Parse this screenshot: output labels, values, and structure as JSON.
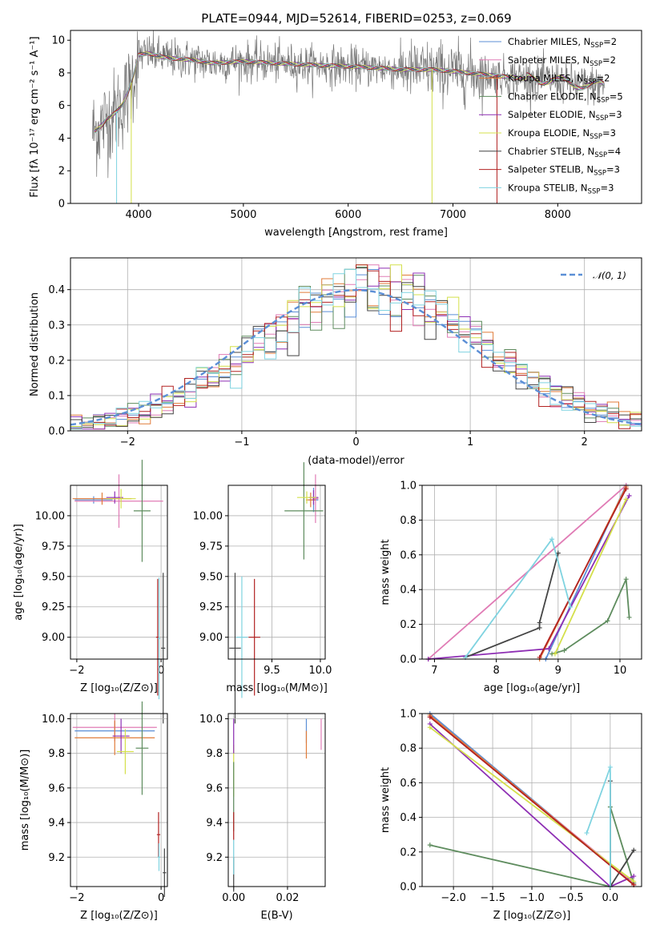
{
  "title": "PLATE=0944, MJD=52614, FIBERID=0253, z=0.069",
  "colors": {
    "chabrier_miles": "#5b8fd6",
    "salpeter_miles": "#e07bb5",
    "kroupa_miles": "#e07b39",
    "chabrier_elodie": "#5e8c5e",
    "salpeter_elodie": "#8e2fb4",
    "kroupa_elodie": "#d4e04b",
    "chabrier_stelib": "#444444",
    "salpeter_stelib": "#b22222",
    "kroupa_stelib": "#7fd3e0"
  },
  "chart_data": [
    {
      "id": "spectrum",
      "type": "line",
      "xlabel": "wavelength [Angstrom, rest frame]",
      "ylabel": "Flux [fλ 10⁻¹⁷ erg cm⁻² s⁻¹ A⁻¹]",
      "xlim": [
        3350,
        8800
      ],
      "ylim": [
        0,
        10.6
      ],
      "xticks": [
        "4000",
        "5000",
        "6000",
        "7000",
        "8000"
      ],
      "yticks": [
        "0",
        "2",
        "4",
        "6",
        "8",
        "10"
      ],
      "legend_position": "top-right",
      "legend": [
        {
          "base": "Chabrier MILES, N",
          "sub": "SSP",
          "tail": "=2",
          "color": "#5b8fd6"
        },
        {
          "base": "Salpeter MILES, N",
          "sub": "SSP",
          "tail": "=2",
          "color": "#e07bb5"
        },
        {
          "base": "Kroupa MILES, N",
          "sub": "SSP",
          "tail": "=2",
          "color": "#e07b39"
        },
        {
          "base": "Chabrier ELODIE, N",
          "sub": "SSP",
          "tail": "=5",
          "color": "#5e8c5e"
        },
        {
          "base": "Salpeter ELODIE, N",
          "sub": "SSP",
          "tail": "=3",
          "color": "#8e2fb4"
        },
        {
          "base": "Kroupa ELODIE, N",
          "sub": "SSP",
          "tail": "=3",
          "color": "#d4e04b"
        },
        {
          "base": "Chabrier STELIB, N",
          "sub": "SSP",
          "tail": "=4",
          "color": "#444444"
        },
        {
          "base": "Salpeter STELIB, N",
          "sub": "SSP",
          "tail": "=3",
          "color": "#b22222"
        },
        {
          "base": "Kroupa STELIB, N",
          "sub": "SSP",
          "tail": "=3",
          "color": "#7fd3e0"
        }
      ],
      "continuum": {
        "x": [
          3580,
          3650,
          3700,
          3750,
          3800,
          3850,
          3900,
          3950,
          4000,
          4100,
          4200,
          4300,
          4500,
          4700,
          5000,
          5300,
          5600,
          6000,
          6300,
          6500,
          6800,
          7000,
          7300,
          7600,
          7900,
          8200,
          8500
        ],
        "y": [
          4.4,
          4.8,
          5.2,
          5.4,
          5.7,
          6.1,
          6.8,
          7.8,
          9.1,
          9.2,
          9.0,
          8.9,
          8.8,
          8.6,
          8.7,
          8.6,
          8.5,
          8.4,
          8.3,
          8.2,
          8.2,
          8.1,
          7.9,
          7.7,
          7.6,
          7.3,
          7.2
        ]
      },
      "observed_range": [
        3560,
        8450
      ]
    },
    {
      "id": "residuals",
      "type": "histogram",
      "xlabel": "(data-model)/error",
      "ylabel": "Normed distribution",
      "xlim": [
        -2.5,
        2.5
      ],
      "ylim": [
        0,
        0.49
      ],
      "xticks": [
        "−2",
        "−1",
        "0",
        "1",
        "2"
      ],
      "yticks": [
        "0.0",
        "0.1",
        "0.2",
        "0.3",
        "0.4"
      ],
      "legend_label": "𝒩(0, 1)",
      "legend_position": "top-right",
      "reference_curve": "normal(0,1)",
      "bin_width": 0.1
    },
    {
      "id": "age-vs-Z",
      "type": "scatter",
      "xlabel": "Z [log₁₀(Z/Z⊙)]",
      "ylabel": "age  [log₁₀(age/yr)]",
      "xlim": [
        -2.15,
        0.15
      ],
      "ylim": [
        8.82,
        10.25
      ],
      "xticks": [
        {
          "v": -2,
          "t": "−2"
        },
        {
          "v": 0,
          "t": "0"
        }
      ],
      "yticks": [
        {
          "v": 9.0,
          "t": "9.00"
        },
        {
          "v": 9.25,
          "t": "9.25"
        },
        {
          "v": 9.5,
          "t": "9.50"
        },
        {
          "v": 9.75,
          "t": "9.75"
        },
        {
          "v": 10.0,
          "t": "10.00"
        }
      ],
      "points": [
        {
          "x": -1.6,
          "y": 10.13,
          "xerr": 0.45,
          "yerr": 0.03,
          "color": "#5b8fd6"
        },
        {
          "x": -1.0,
          "y": 10.12,
          "xerr": 1.05,
          "yerr": 0.22,
          "color": "#e07bb5"
        },
        {
          "x": -1.4,
          "y": 10.14,
          "xerr": 0.7,
          "yerr": 0.05,
          "color": "#e07b39"
        },
        {
          "x": -0.45,
          "y": 10.04,
          "xerr": 0.2,
          "yerr": 0.42,
          "color": "#5e8c5e"
        },
        {
          "x": -1.1,
          "y": 10.15,
          "xerr": 0.2,
          "yerr": 0.05,
          "color": "#8e2fb4"
        },
        {
          "x": -0.95,
          "y": 10.14,
          "xerr": 0.35,
          "yerr": 0.08,
          "color": "#d4e04b"
        },
        {
          "x": 0.05,
          "y": 8.91,
          "xerr": 0.05,
          "yerr": 0.62,
          "color": "#444444"
        },
        {
          "x": -0.08,
          "y": 9.0,
          "xerr": 0.04,
          "yerr": 0.48,
          "color": "#b22222"
        },
        {
          "x": -0.05,
          "y": 8.99,
          "xerr": 0.03,
          "yerr": 0.5,
          "color": "#7fd3e0"
        }
      ]
    },
    {
      "id": "age-vs-mass",
      "type": "scatter",
      "xlabel": "mass [log₁₀(M/M⊙)]",
      "ylabel": "",
      "xlim": [
        9.05,
        10.05
      ],
      "ylim": [
        8.82,
        10.25
      ],
      "xticks": [
        {
          "v": 9.5,
          "t": "9.5"
        },
        {
          "v": 10.0,
          "t": "10.0"
        }
      ],
      "yticks": [
        {
          "v": 9.0,
          "t": "9.00"
        },
        {
          "v": 9.25,
          "t": "9.25"
        },
        {
          "v": 9.5,
          "t": "9.50"
        },
        {
          "v": 9.75,
          "t": "9.75"
        },
        {
          "v": 10.0,
          "t": "10.00"
        }
      ],
      "points": [
        {
          "x": 9.93,
          "y": 10.13,
          "xerr": 0.05,
          "yerr": 0.1,
          "color": "#5b8fd6"
        },
        {
          "x": 9.95,
          "y": 10.14,
          "xerr": 0.03,
          "yerr": 0.2,
          "color": "#e07bb5"
        },
        {
          "x": 9.9,
          "y": 10.13,
          "xerr": 0.05,
          "yerr": 0.06,
          "color": "#e07b39"
        },
        {
          "x": 9.83,
          "y": 10.04,
          "xerr": 0.2,
          "yerr": 0.4,
          "color": "#5e8c5e"
        },
        {
          "x": 9.93,
          "y": 10.15,
          "xerr": 0.05,
          "yerr": 0.06,
          "color": "#8e2fb4"
        },
        {
          "x": 9.86,
          "y": 10.15,
          "xerr": 0.1,
          "yerr": 0.05,
          "color": "#d4e04b"
        },
        {
          "x": 9.12,
          "y": 8.91,
          "xerr": 0.06,
          "yerr": 0.62,
          "color": "#444444"
        },
        {
          "x": 9.32,
          "y": 9.0,
          "xerr": 0.06,
          "yerr": 0.48,
          "color": "#b22222"
        },
        {
          "x": 9.19,
          "y": 9.0,
          "xerr": 0.06,
          "yerr": 0.5,
          "color": "#7fd3e0"
        }
      ]
    },
    {
      "id": "mass-weight-vs-age",
      "type": "line",
      "xlabel": "age  [log₁₀(age/yr)]",
      "ylabel": "mass weight",
      "xlim": [
        6.8,
        10.35
      ],
      "ylim": [
        0,
        1.0
      ],
      "xticks": [
        {
          "v": 7,
          "t": "7"
        },
        {
          "v": 8,
          "t": "8"
        },
        {
          "v": 9,
          "t": "9"
        },
        {
          "v": 10,
          "t": "10"
        }
      ],
      "yticks": [
        {
          "v": 0,
          "t": "0.0"
        },
        {
          "v": 0.2,
          "t": "0.2"
        },
        {
          "v": 0.4,
          "t": "0.4"
        },
        {
          "v": 0.6,
          "t": "0.6"
        },
        {
          "v": 0.8,
          "t": "0.8"
        },
        {
          "v": 1.0,
          "t": "1.0"
        }
      ],
      "series": [
        {
          "color": "#5b8fd6",
          "x": [
            8.8,
            10.1
          ],
          "y": [
            0.0,
            1.0
          ]
        },
        {
          "color": "#e07bb5",
          "x": [
            6.9,
            10.1
          ],
          "y": [
            0.0,
            1.0
          ]
        },
        {
          "color": "#e07b39",
          "x": [
            8.7,
            10.1
          ],
          "y": [
            0.0,
            0.99
          ]
        },
        {
          "color": "#5e8c5e",
          "x": [
            8.9,
            9.1,
            9.8,
            10.1,
            10.15
          ],
          "y": [
            0.03,
            0.05,
            0.22,
            0.46,
            0.24
          ]
        },
        {
          "color": "#8e2fb4",
          "x": [
            6.9,
            8.85,
            10.15
          ],
          "y": [
            0.0,
            0.06,
            0.94
          ]
        },
        {
          "color": "#d4e04b",
          "x": [
            8.95,
            10.1
          ],
          "y": [
            0.03,
            0.92
          ]
        },
        {
          "color": "#444444",
          "x": [
            7.5,
            8.7,
            8.7,
            9.0
          ],
          "y": [
            0.01,
            0.18,
            0.21,
            0.61
          ]
        },
        {
          "color": "#b22222",
          "x": [
            8.7,
            10.1
          ],
          "y": [
            0.01,
            0.98
          ]
        },
        {
          "color": "#7fd3e0",
          "x": [
            7.5,
            8.9,
            9.2
          ],
          "y": [
            0.01,
            0.69,
            0.3
          ]
        }
      ]
    },
    {
      "id": "mass-vs-Z",
      "type": "scatter",
      "xlabel": "Z [log₁₀(Z/Z⊙)]",
      "ylabel": "mass [log₁₀(M/M⊙)]",
      "xlim": [
        -2.15,
        0.15
      ],
      "ylim": [
        9.03,
        10.03
      ],
      "xticks": [
        {
          "v": -2,
          "t": "−2"
        },
        {
          "v": 0,
          "t": "0"
        }
      ],
      "yticks": [
        {
          "v": 9.2,
          "t": "9.2"
        },
        {
          "v": 9.4,
          "t": "9.4"
        },
        {
          "v": 9.6,
          "t": "9.6"
        },
        {
          "v": 9.8,
          "t": "9.8"
        },
        {
          "v": 10.0,
          "t": "10.0"
        }
      ],
      "points": [
        {
          "x": -1.1,
          "y": 9.93,
          "xerr": 0.95,
          "yerr": 0.05,
          "color": "#5b8fd6"
        },
        {
          "x": -1.1,
          "y": 9.95,
          "xerr": 1.0,
          "yerr": 0.08,
          "color": "#e07bb5"
        },
        {
          "x": -1.1,
          "y": 9.89,
          "xerr": 0.95,
          "yerr": 0.1,
          "color": "#e07b39"
        },
        {
          "x": -0.45,
          "y": 9.83,
          "xerr": 0.15,
          "yerr": 0.27,
          "color": "#5e8c5e"
        },
        {
          "x": -0.95,
          "y": 9.9,
          "xerr": 0.2,
          "yerr": 0.1,
          "color": "#8e2fb4"
        },
        {
          "x": -0.85,
          "y": 9.81,
          "xerr": 0.2,
          "yerr": 0.13,
          "color": "#d4e04b"
        },
        {
          "x": 0.08,
          "y": 9.11,
          "xerr": 0.04,
          "yerr": 0.14,
          "color": "#444444"
        },
        {
          "x": -0.06,
          "y": 9.33,
          "xerr": 0.04,
          "yerr": 0.13,
          "color": "#b22222"
        },
        {
          "x": -0.05,
          "y": 9.2,
          "xerr": 0.03,
          "yerr": 0.08,
          "color": "#7fd3e0"
        }
      ]
    },
    {
      "id": "mass-vs-ebv",
      "type": "scatter",
      "xlabel": "E(B-V)",
      "ylabel": "",
      "xlim": [
        -0.002,
        0.034
      ],
      "ylim": [
        9.03,
        10.03
      ],
      "xticks": [
        {
          "v": 0.0,
          "t": "0.00"
        },
        {
          "v": 0.02,
          "t": "0.02"
        }
      ],
      "yticks": [
        {
          "v": 9.2,
          "t": "9.2"
        },
        {
          "v": 9.4,
          "t": "9.4"
        },
        {
          "v": 9.6,
          "t": "9.6"
        },
        {
          "v": 9.8,
          "t": "9.8"
        },
        {
          "v": 10.0,
          "t": "10.0"
        }
      ],
      "points": [
        {
          "x": 0.027,
          "y": 9.93,
          "xerr": 0.0,
          "yerr": 0.07,
          "color": "#5b8fd6"
        },
        {
          "x": 0.0325,
          "y": 9.91,
          "xerr": 0.0,
          "yerr": 0.09,
          "color": "#e07bb5"
        },
        {
          "x": 0.027,
          "y": 9.85,
          "xerr": 0.0,
          "yerr": 0.08,
          "color": "#e07b39"
        },
        {
          "x": 0.0,
          "y": 9.7,
          "xerr": 0.0,
          "yerr": 0.15,
          "color": "#d4e04b"
        },
        {
          "x": 0.0,
          "y": 9.9,
          "xerr": 0.0,
          "yerr": 0.1,
          "color": "#8e2fb4"
        },
        {
          "x": 0.0,
          "y": 9.55,
          "xerr": 0.0,
          "yerr": 0.2,
          "color": "#5e8c5e"
        },
        {
          "x": 0.0,
          "y": 9.1,
          "xerr": 0.0,
          "yerr": 0.1,
          "color": "#444444"
        },
        {
          "x": 0.0,
          "y": 9.38,
          "xerr": 0.0,
          "yerr": 0.08,
          "color": "#b22222"
        },
        {
          "x": 0.0,
          "y": 9.2,
          "xerr": 0.0,
          "yerr": 0.1,
          "color": "#7fd3e0"
        }
      ]
    },
    {
      "id": "mass-weight-vs-Z",
      "type": "line",
      "xlabel": "Z [log₁₀(Z/Z⊙)]",
      "ylabel": "mass weight",
      "xlim": [
        -2.4,
        0.4
      ],
      "ylim": [
        0,
        1.0
      ],
      "xticks": [
        {
          "v": -2.0,
          "t": "−2.0"
        },
        {
          "v": -1.5,
          "t": "−1.5"
        },
        {
          "v": -1.0,
          "t": "−1.0"
        },
        {
          "v": -0.5,
          "t": "−0.5"
        },
        {
          "v": 0.0,
          "t": "0.0"
        }
      ],
      "yticks": [
        {
          "v": 0,
          "t": "0.0"
        },
        {
          "v": 0.2,
          "t": "0.2"
        },
        {
          "v": 0.4,
          "t": "0.4"
        },
        {
          "v": 0.6,
          "t": "0.6"
        },
        {
          "v": 0.8,
          "t": "0.8"
        },
        {
          "v": 1.0,
          "t": "1.0"
        }
      ],
      "series": [
        {
          "color": "#5b8fd6",
          "x": [
            -2.3,
            0.3
          ],
          "y": [
            1.0,
            0.01
          ]
        },
        {
          "color": "#e07bb5",
          "x": [
            -2.3,
            0.3
          ],
          "y": [
            0.98,
            0.02
          ]
        },
        {
          "color": "#e07b39",
          "x": [
            -2.3,
            0.3
          ],
          "y": [
            0.99,
            0.01
          ]
        },
        {
          "color": "#5e8c5e",
          "x": [
            -2.3,
            0.0,
            0.0,
            0.3
          ],
          "y": [
            0.24,
            0.0,
            0.46,
            0.02
          ]
        },
        {
          "color": "#8e2fb4",
          "x": [
            -2.3,
            0.0,
            0.3
          ],
          "y": [
            0.94,
            0.0,
            0.06
          ]
        },
        {
          "color": "#d4e04b",
          "x": [
            -2.3,
            0.3
          ],
          "y": [
            0.92,
            0.03
          ]
        },
        {
          "color": "#444444",
          "x": [
            0.0,
            0.0,
            0.3
          ],
          "y": [
            0.61,
            0.0,
            0.21
          ]
        },
        {
          "color": "#b22222",
          "x": [
            -2.3,
            0.3
          ],
          "y": [
            0.98,
            0.01
          ]
        },
        {
          "color": "#7fd3e0",
          "x": [
            -0.3,
            0.0,
            0.0
          ],
          "y": [
            0.31,
            0.69,
            0.0
          ]
        }
      ]
    }
  ]
}
